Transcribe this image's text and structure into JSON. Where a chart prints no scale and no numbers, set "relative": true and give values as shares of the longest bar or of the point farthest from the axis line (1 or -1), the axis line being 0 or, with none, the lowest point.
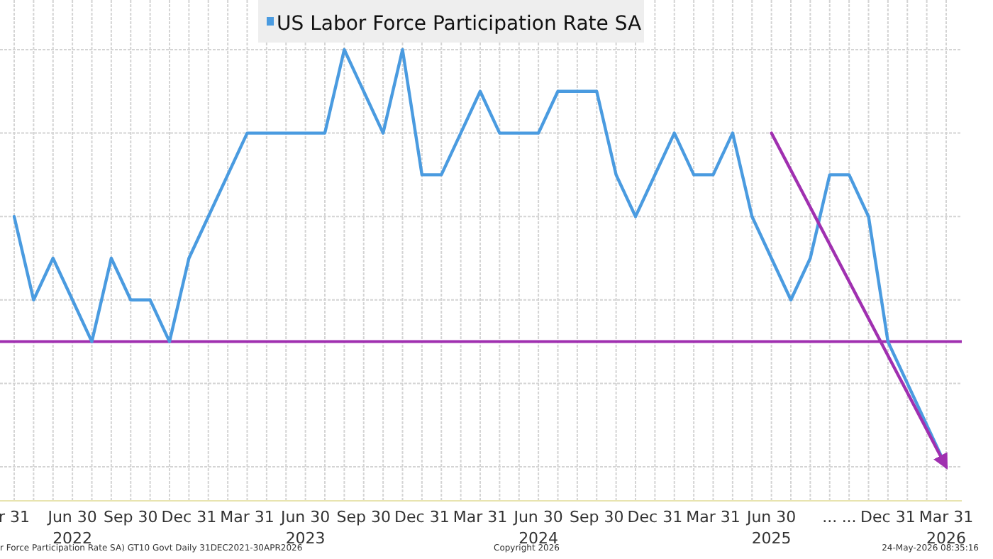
{
  "chart_data": {
    "type": "line",
    "relative": true,
    "grid": true,
    "legend": "top",
    "line_style": "solid",
    "marker": "none",
    "categories": [
      "r 31",
      null,
      null,
      "Jun 30\n2022",
      null,
      null,
      "Sep 30",
      null,
      null,
      "Dec 31",
      null,
      null,
      "Mar 31",
      null,
      null,
      "Jun 30\n2023",
      null,
      null,
      "Sep 30",
      null,
      null,
      "Dec 31",
      null,
      null,
      "Mar 31",
      null,
      null,
      "Jun 30\n2024",
      null,
      null,
      "Sep 30",
      null,
      null,
      "Dec 31",
      null,
      null,
      "Mar 31",
      null,
      null,
      "Jun 30\n2025",
      null,
      null,
      "...",
      "...",
      null,
      "Dec 31",
      null,
      null,
      "Mar 31\n2026"
    ],
    "series": [
      {
        "name": "US Labor Force Participation Rate SA",
        "color": "#4a9be0",
        "values": [
          0.6,
          0.4,
          0.5,
          0.4,
          0.3,
          0.5,
          0.4,
          0.4,
          0.3,
          0.5,
          0.6,
          0.7,
          0.8,
          0.8,
          0.8,
          0.8,
          0.8,
          1,
          0.9,
          0.8,
          1,
          0.7,
          0.7,
          0.8,
          0.9,
          0.8,
          0.8,
          0.8,
          0.9,
          0.9,
          0.9,
          0.7,
          0.6,
          0.7,
          0.8,
          0.7,
          0.7,
          0.8,
          0.6,
          0.5,
          0.4,
          0.5,
          0.7,
          0.7,
          0.6,
          0.3,
          0.2,
          0.1,
          0
        ]
      },
      {
        "type": "line",
        "color": "#a030b0",
        "values": [
          null,
          null,
          null,
          null,
          null,
          null,
          null,
          null,
          null,
          null,
          null,
          null,
          null,
          null,
          null,
          null,
          null,
          null,
          null,
          null,
          null,
          null,
          null,
          null,
          null,
          null,
          null,
          null,
          null,
          null,
          null,
          null,
          null,
          null,
          null,
          null,
          null,
          null,
          null,
          0.8,
          null,
          null,
          null,
          null,
          null,
          null,
          null,
          null,
          0
        ]
      }
    ],
    "ref_lines": [
      {
        "axis": "y",
        "value": 0.3,
        "color": "#a030b0"
      }
    ],
    "annotations": [
      "r Force Participation Rate SA) GT10  Govt Daily 31DEC2021-30APR2026",
      "Copyright 2026",
      "24-May-2026 08:35:16"
    ]
  }
}
